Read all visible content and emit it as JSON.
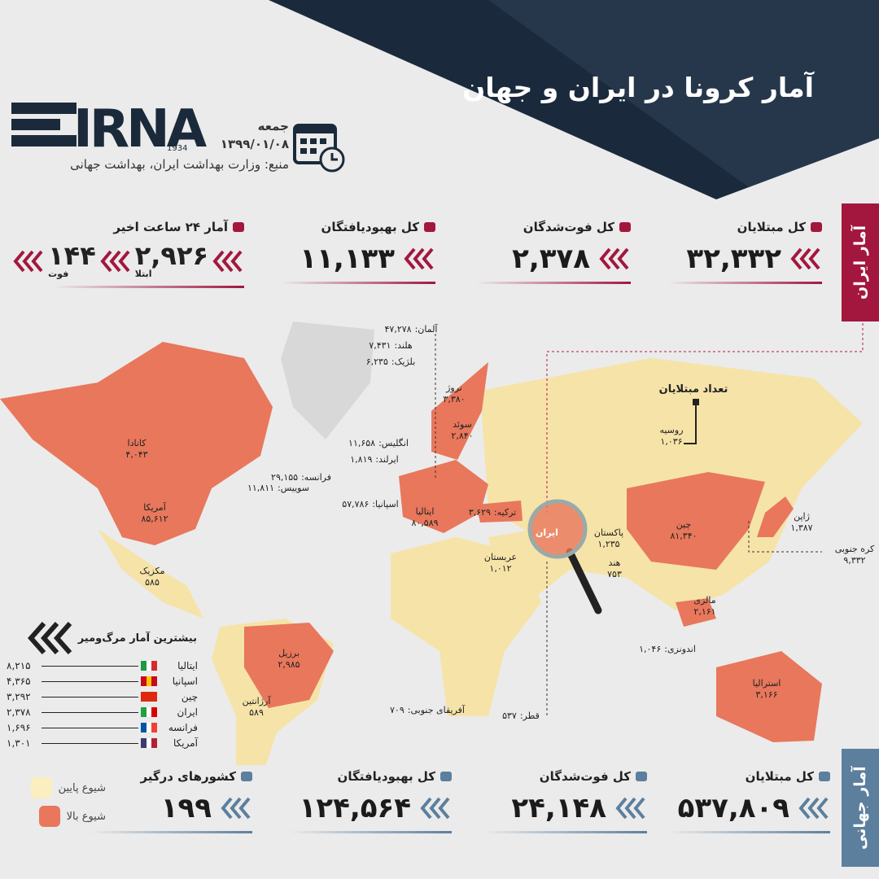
{
  "header": {
    "title": "آمار کرونا در ایران و جهان",
    "logo": "IRNA",
    "logo_year": "1934",
    "day": "جمعه",
    "date": "۱۳۹۹/۰۱/۰۸",
    "source": "منبع: وزارت بهداشت ایران، بهداشت جهانی"
  },
  "iran": {
    "label": "آمار ایران",
    "stats": [
      {
        "title": "کل مبتلایان",
        "value": "۳۲,۳۳۲"
      },
      {
        "title": "کل فوت‌شدگان",
        "value": "۲,۳۷۸"
      },
      {
        "title": "کل بهبودیافتگان",
        "value": "۱۱,۱۳۳"
      }
    ],
    "last_24h": {
      "title": "آمار ۲۴ ساعت اخیر",
      "cases": "۲,۹۲۶",
      "cases_label": "ابتلا",
      "deaths": "۱۴۴",
      "deaths_label": "فوت"
    }
  },
  "world": {
    "label": "آمار جهانی",
    "stats": [
      {
        "title": "کل مبتلایان",
        "value": "۵۳۷,۸۰۹"
      },
      {
        "title": "کل فوت‌شدگان",
        "value": "۲۴,۱۴۸"
      },
      {
        "title": "کل بهبودیافتگان",
        "value": "۱۲۴,۵۶۴"
      },
      {
        "title": "کشورهای درگیر",
        "value": "۱۹۹"
      }
    ]
  },
  "legend": {
    "low": "شیوع پایین",
    "high": "شیوع بالا"
  },
  "deaths": {
    "title": "بیشترین آمار مرگ‌ومیر",
    "rows": [
      {
        "country": "ایتالیا",
        "value": "۸,۲۱۵"
      },
      {
        "country": "اسپانیا",
        "value": "۴,۳۶۵"
      },
      {
        "country": "چین",
        "value": "۳,۲۹۲"
      },
      {
        "country": "ایران",
        "value": "۲,۳۷۸"
      },
      {
        "country": "فرانسه",
        "value": "۱,۶۹۶"
      },
      {
        "country": "آمریکا",
        "value": "۱,۳۰۱"
      }
    ]
  },
  "map": {
    "title": "تعداد مبتلایان",
    "labels": [
      {
        "name": "آلمان:",
        "value": "۴۷,۲۷۸"
      },
      {
        "name": "هلند:",
        "value": "۷,۴۳۱"
      },
      {
        "name": "بلژیک:",
        "value": "۶,۲۳۵"
      },
      {
        "name": "نروژ",
        "value": "۳,۳۸۰"
      },
      {
        "name": "سوئد",
        "value": "۲,۸۴۰"
      },
      {
        "name": "انگلیس:",
        "value": "۱۱,۶۵۸"
      },
      {
        "name": "ایرلند:",
        "value": "۱,۸۱۹"
      },
      {
        "name": "فرانسه:",
        "value": "۲۹,۱۵۵"
      },
      {
        "name": "سوییس:",
        "value": "۱۱,۸۱۱"
      },
      {
        "name": "اسپانیا:",
        "value": "۵۷,۷۸۶"
      },
      {
        "name": "ایتالیا",
        "value": "۸۰,۵۸۹"
      },
      {
        "name": "ترکیه:",
        "value": "۳,۶۲۹"
      },
      {
        "name": "ایران"
      },
      {
        "name": "عربستان",
        "value": "۱,۰۱۲"
      },
      {
        "name": "پاکستان",
        "value": "۱,۲۳۵"
      },
      {
        "name": "هند",
        "value": "۷۵۳"
      },
      {
        "name": "چین",
        "value": "۸۱,۳۴۰"
      },
      {
        "name": "ژاپن",
        "value": "۱,۳۸۷"
      },
      {
        "name": "کره جنوبی",
        "value": "۹,۳۳۲"
      },
      {
        "name": "روسیه",
        "value": "۱,۰۳۶"
      },
      {
        "name": "مالزی",
        "value": "۲,۱۶۱"
      },
      {
        "name": "اندونزی:",
        "value": "۱,۰۴۶"
      },
      {
        "name": "استرالیا",
        "value": "۳,۱۶۶"
      },
      {
        "name": "کانادا",
        "value": "۴,۰۴۳"
      },
      {
        "name": "آمریکا",
        "value": "۸۵,۶۱۲"
      },
      {
        "name": "مکزیک",
        "value": "۵۸۵"
      },
      {
        "name": "برزیل",
        "value": "۲,۹۸۵"
      },
      {
        "name": "آرژانتین",
        "value": "۵۸۹"
      },
      {
        "name": "آفریقای جنوبی:",
        "value": "۷۰۹"
      },
      {
        "name": "قطر:",
        "value": "۵۳۷"
      }
    ]
  }
}
